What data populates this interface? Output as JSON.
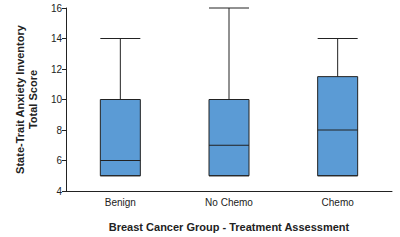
{
  "chart_data": {
    "type": "boxplot",
    "x_label": "Breast Cancer Group - Treatment Assessment",
    "y_label": "State-Trait Anxiety Inventory\nTotal Score",
    "categories": [
      "Benign",
      "No Chemo",
      "Chemo"
    ],
    "values": [
      [
        5,
        5,
        6,
        10,
        14
      ],
      [
        5,
        5,
        7,
        10,
        16
      ],
      [
        5,
        5,
        8,
        11.5,
        14
      ]
    ],
    "color": "#5b9bd5",
    "ylim": [
      4,
      16
    ],
    "yticks": [
      4,
      6,
      8,
      10,
      12,
      14,
      16
    ],
    "grid": false
  }
}
